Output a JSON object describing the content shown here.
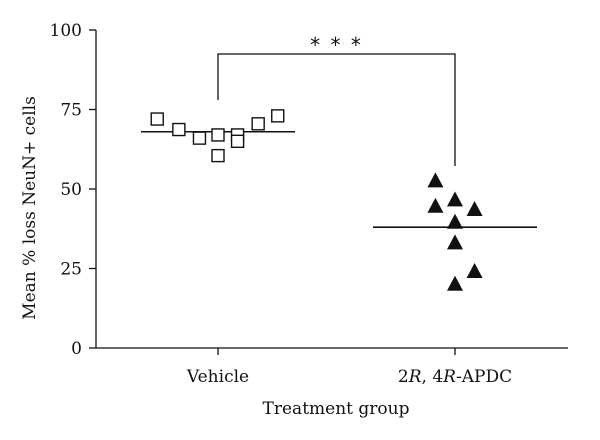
{
  "chart_data": {
    "type": "scatter",
    "title": "",
    "xlabel": "Treatment group",
    "ylabel": "Mean % loss NeuN+ cells",
    "ylim": [
      0,
      100
    ],
    "yticks": [
      0,
      25,
      50,
      75,
      100
    ],
    "categories": [
      {
        "label": "Vehicle",
        "label_parts": [
          {
            "text": "Vehicle",
            "italic": false
          }
        ]
      },
      {
        "label": "2R, 4R-APDC",
        "label_parts": [
          {
            "text": "2",
            "italic": false
          },
          {
            "text": "R",
            "italic": true
          },
          {
            "text": ", 4",
            "italic": false
          },
          {
            "text": "R",
            "italic": true
          },
          {
            "text": "-APDC",
            "italic": false
          }
        ]
      }
    ],
    "series": [
      {
        "category": "Vehicle",
        "marker": "open-square",
        "mean": 68,
        "points": [
          {
            "x": -0.59,
            "y": 72
          },
          {
            "x": -0.38,
            "y": 68.7
          },
          {
            "x": -0.18,
            "y": 66
          },
          {
            "x": 0.0,
            "y": 67
          },
          {
            "x": 0.0,
            "y": 60.5
          },
          {
            "x": 0.19,
            "y": 67
          },
          {
            "x": 0.19,
            "y": 65
          },
          {
            "x": 0.39,
            "y": 70.5
          },
          {
            "x": 0.58,
            "y": 73
          }
        ]
      },
      {
        "category": "2R, 4R-APDC",
        "marker": "filled-triangle",
        "mean": 38,
        "points": [
          {
            "x": -0.19,
            "y": 52.5
          },
          {
            "x": -0.19,
            "y": 44.5
          },
          {
            "x": 0.0,
            "y": 46.5
          },
          {
            "x": 0.0,
            "y": 39.5
          },
          {
            "x": 0.0,
            "y": 33
          },
          {
            "x": 0.0,
            "y": 20
          },
          {
            "x": 0.19,
            "y": 43.5
          },
          {
            "x": 0.19,
            "y": 24
          }
        ]
      }
    ],
    "significance": {
      "label": "* * *",
      "from": "Vehicle",
      "to": "2R, 4R-APDC"
    }
  }
}
